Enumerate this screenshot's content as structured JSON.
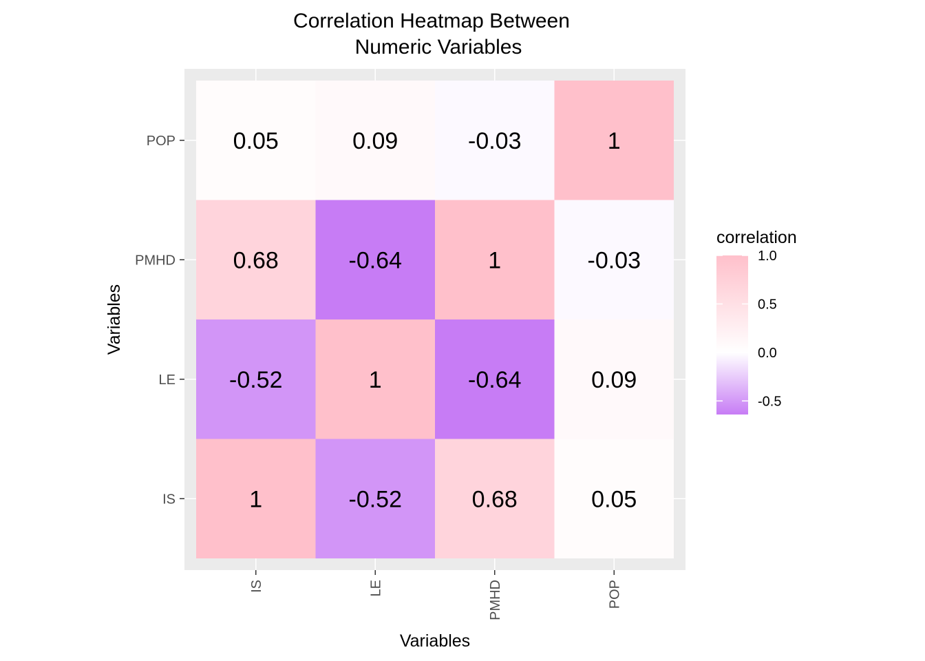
{
  "chart_data": {
    "type": "heatmap",
    "title": [
      "Correlation Heatmap Between",
      "Numeric Variables"
    ],
    "xlabel": "Variables",
    "ylabel": "Variables",
    "x_categories": [
      "IS",
      "LE",
      "PMHD",
      "POP"
    ],
    "y_categories": [
      "IS",
      "LE",
      "PMHD",
      "POP"
    ],
    "values": [
      [
        1,
        -0.52,
        0.68,
        0.05
      ],
      [
        -0.52,
        1,
        -0.64,
        0.09
      ],
      [
        0.68,
        -0.64,
        1,
        -0.03
      ],
      [
        0.05,
        0.09,
        -0.03,
        1
      ]
    ],
    "value_labels": [
      [
        "1",
        "-0.52",
        "0.68",
        "0.05"
      ],
      [
        "-0.52",
        "1",
        "-0.64",
        "0.09"
      ],
      [
        "0.68",
        "-0.64",
        "1",
        "-0.03"
      ],
      [
        "0.05",
        "0.09",
        "-0.03",
        "1"
      ]
    ],
    "color_scale": {
      "low": "#c77cf5",
      "mid": "#ffffff",
      "high": "#ffc0cb",
      "min": -0.64,
      "max": 1.0
    },
    "legend": {
      "title": "correlation",
      "ticks": [
        1.0,
        0.5,
        0.0,
        -0.5
      ],
      "tick_labels": [
        "1.0",
        "0.5",
        "0.0",
        "-0.5"
      ],
      "placement": "right"
    },
    "panel_background": "#ebebeb",
    "grid": true
  }
}
